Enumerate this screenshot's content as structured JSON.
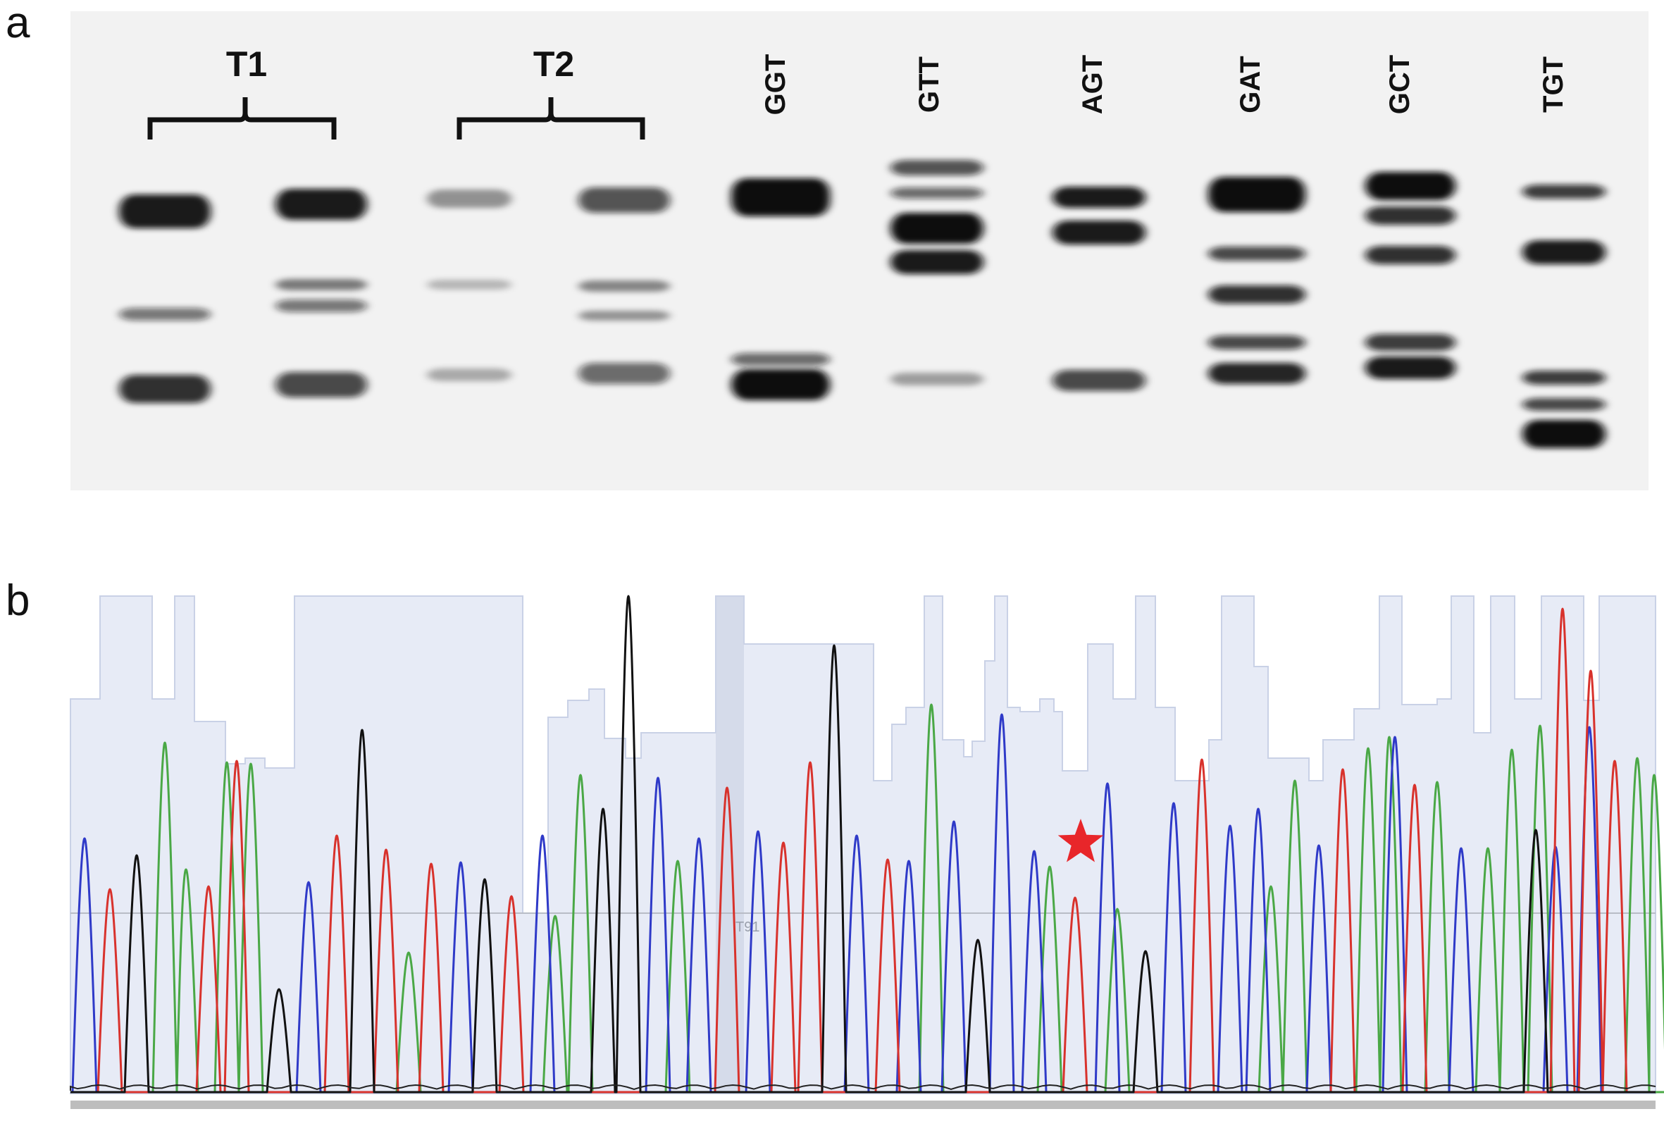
{
  "panels": {
    "a": {
      "letter": "a",
      "group_labels": [
        "T1",
        "T2"
      ],
      "lane_labels": [
        "GGT",
        "GTT",
        "AGT",
        "GAT",
        "GCT",
        "TGT"
      ]
    },
    "b": {
      "letter": "b",
      "faint_label": "T91",
      "marker": "star",
      "marker_color": "#e8262a",
      "trace_colors": {
        "A": "#4aa846",
        "C": "#2f3ac8",
        "G": "#111111",
        "T": "#d8322c"
      }
    }
  }
}
